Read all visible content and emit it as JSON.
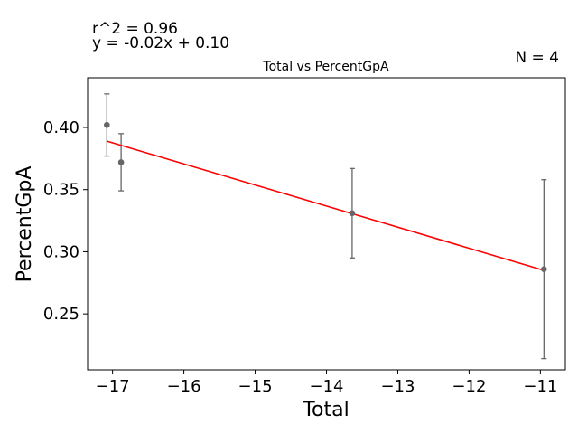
{
  "chart_data": {
    "type": "scatter",
    "title": "Total vs PercentGpA",
    "xlabel": "Total",
    "ylabel": "PercentGpA",
    "annotations": {
      "r2": "r^2 = 0.96",
      "equation": "y = -0.02x + 0.10",
      "n": "N = 4"
    },
    "xlim": [
      -17.35,
      -10.65
    ],
    "ylim": [
      0.205,
      0.44
    ],
    "xticks": [
      -17,
      -16,
      -15,
      -14,
      -13,
      -12,
      -11
    ],
    "xtick_labels": [
      "−17",
      "−16",
      "−15",
      "−14",
      "−13",
      "−12",
      "−11"
    ],
    "yticks": [
      0.25,
      0.3,
      0.35,
      0.4
    ],
    "ytick_labels": [
      "0.25",
      "0.30",
      "0.35",
      "0.40"
    ],
    "grid": false,
    "points": [
      {
        "x": -17.08,
        "y": 0.402,
        "err_low": 0.377,
        "err_high": 0.427
      },
      {
        "x": -16.88,
        "y": 0.372,
        "err_low": 0.349,
        "err_high": 0.395
      },
      {
        "x": -13.64,
        "y": 0.331,
        "err_low": 0.295,
        "err_high": 0.367
      },
      {
        "x": -10.95,
        "y": 0.286,
        "err_low": 0.214,
        "err_high": 0.358
      }
    ],
    "fit_line": {
      "x": [
        -17.08,
        -10.95
      ],
      "y": [
        0.389,
        0.285
      ]
    },
    "colors": {
      "points": "#666666",
      "errorbars": "#666666",
      "fit": "#ff0000",
      "axes": "#000000"
    }
  }
}
